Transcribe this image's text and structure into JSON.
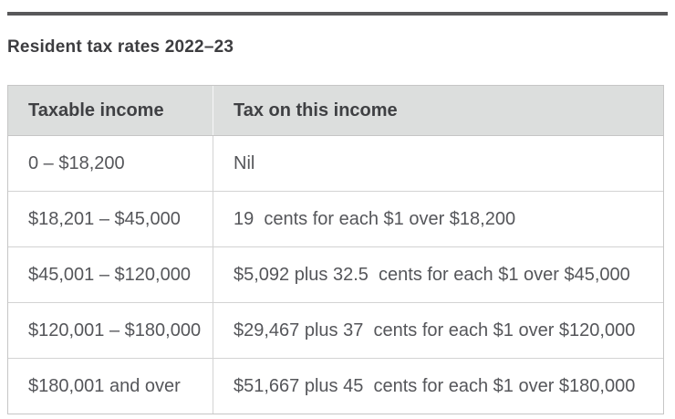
{
  "page": {
    "title": "Resident tax rates 2022–23"
  },
  "table": {
    "columns": [
      "Taxable income",
      "Tax on this income"
    ],
    "rows": [
      [
        "0 – $18,200",
        "Nil"
      ],
      [
        "$18,201 – $45,000",
        "19  cents for each $1 over $18,200"
      ],
      [
        "$45,001 – $120,000",
        "$5,092 plus 32.5  cents for each $1 over $45,000"
      ],
      [
        "$120,001 – $180,000",
        "$29,467 plus 37  cents for each $1 over $120,000"
      ],
      [
        "$180,001 and over",
        "$51,667 plus 45  cents for each $1 over $180,000"
      ]
    ]
  },
  "colors": {
    "top_bar": "#58585a",
    "title_text": "#3d3d40",
    "header_bg": "#dcdedd",
    "header_text": "#3f4043",
    "cell_text": "#55565a",
    "border_outer": "#c6c6c6",
    "border_inner": "#d3d3d3"
  }
}
